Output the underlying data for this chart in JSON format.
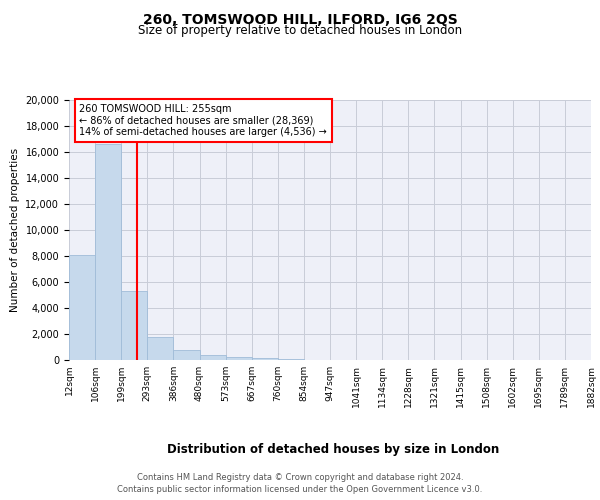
{
  "title": "260, TOMSWOOD HILL, ILFORD, IG6 2QS",
  "subtitle": "Size of property relative to detached houses in London",
  "xlabel": "Distribution of detached houses by size in London",
  "ylabel": "Number of detached properties",
  "bar_values": [
    8100,
    16600,
    5300,
    1750,
    780,
    380,
    200,
    150,
    100,
    0,
    0,
    0,
    0,
    0,
    0,
    0,
    0,
    0,
    0,
    0
  ],
  "bin_labels": [
    "12sqm",
    "106sqm",
    "199sqm",
    "293sqm",
    "386sqm",
    "480sqm",
    "573sqm",
    "667sqm",
    "760sqm",
    "854sqm",
    "947sqm",
    "1041sqm",
    "1134sqm",
    "1228sqm",
    "1321sqm",
    "1415sqm",
    "1508sqm",
    "1602sqm",
    "1695sqm",
    "1789sqm",
    "1882sqm"
  ],
  "n_bins": 20,
  "bar_color": "#c6d9ec",
  "bar_edge_color": "#a0bcd8",
  "vline_color": "red",
  "annotation_text": "260 TOMSWOOD HILL: 255sqm\n← 86% of detached houses are smaller (28,369)\n14% of semi-detached houses are larger (4,536) →",
  "annotation_box_color": "white",
  "annotation_box_edge_color": "red",
  "ylim": [
    0,
    20000
  ],
  "yticks": [
    0,
    2000,
    4000,
    6000,
    8000,
    10000,
    12000,
    14000,
    16000,
    18000,
    20000
  ],
  "footer_line1": "Contains HM Land Registry data © Crown copyright and database right 2024.",
  "footer_line2": "Contains public sector information licensed under the Open Government Licence v3.0.",
  "bg_color": "#eef0f8",
  "grid_color": "#c8ccd8"
}
